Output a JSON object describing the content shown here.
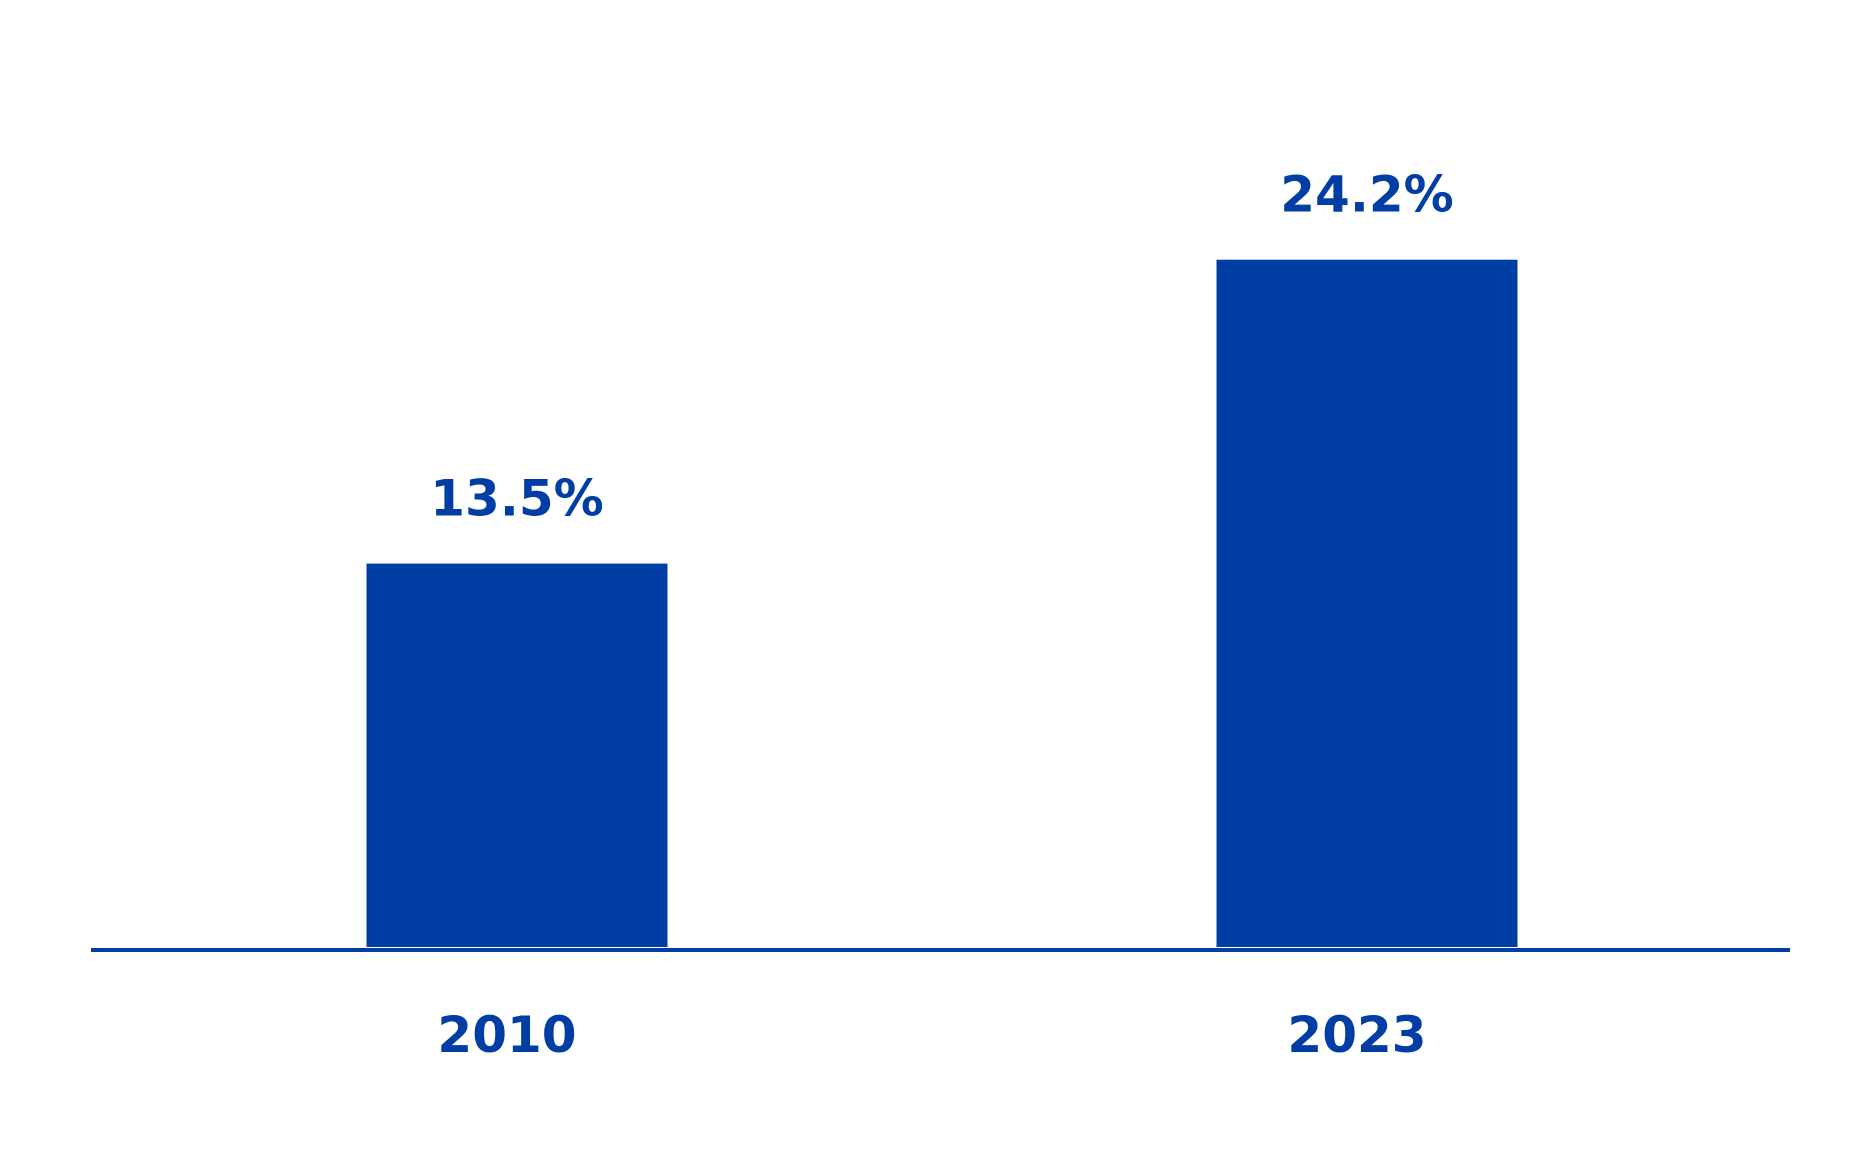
{
  "chart_data": {
    "type": "bar",
    "title": "",
    "xlabel": "",
    "ylabel": "",
    "categories": [
      "2010",
      "2023"
    ],
    "values": [
      13.5,
      24.2
    ],
    "data_labels": [
      "13.5%",
      "24.2%"
    ],
    "unit": "%",
    "ylim": [
      0,
      30
    ],
    "grid": false,
    "legend": "none",
    "y_axis_visible": false,
    "colors": {
      "bar": "#003DA5",
      "text": "#003DA5",
      "axis": "#003DA5"
    }
  }
}
